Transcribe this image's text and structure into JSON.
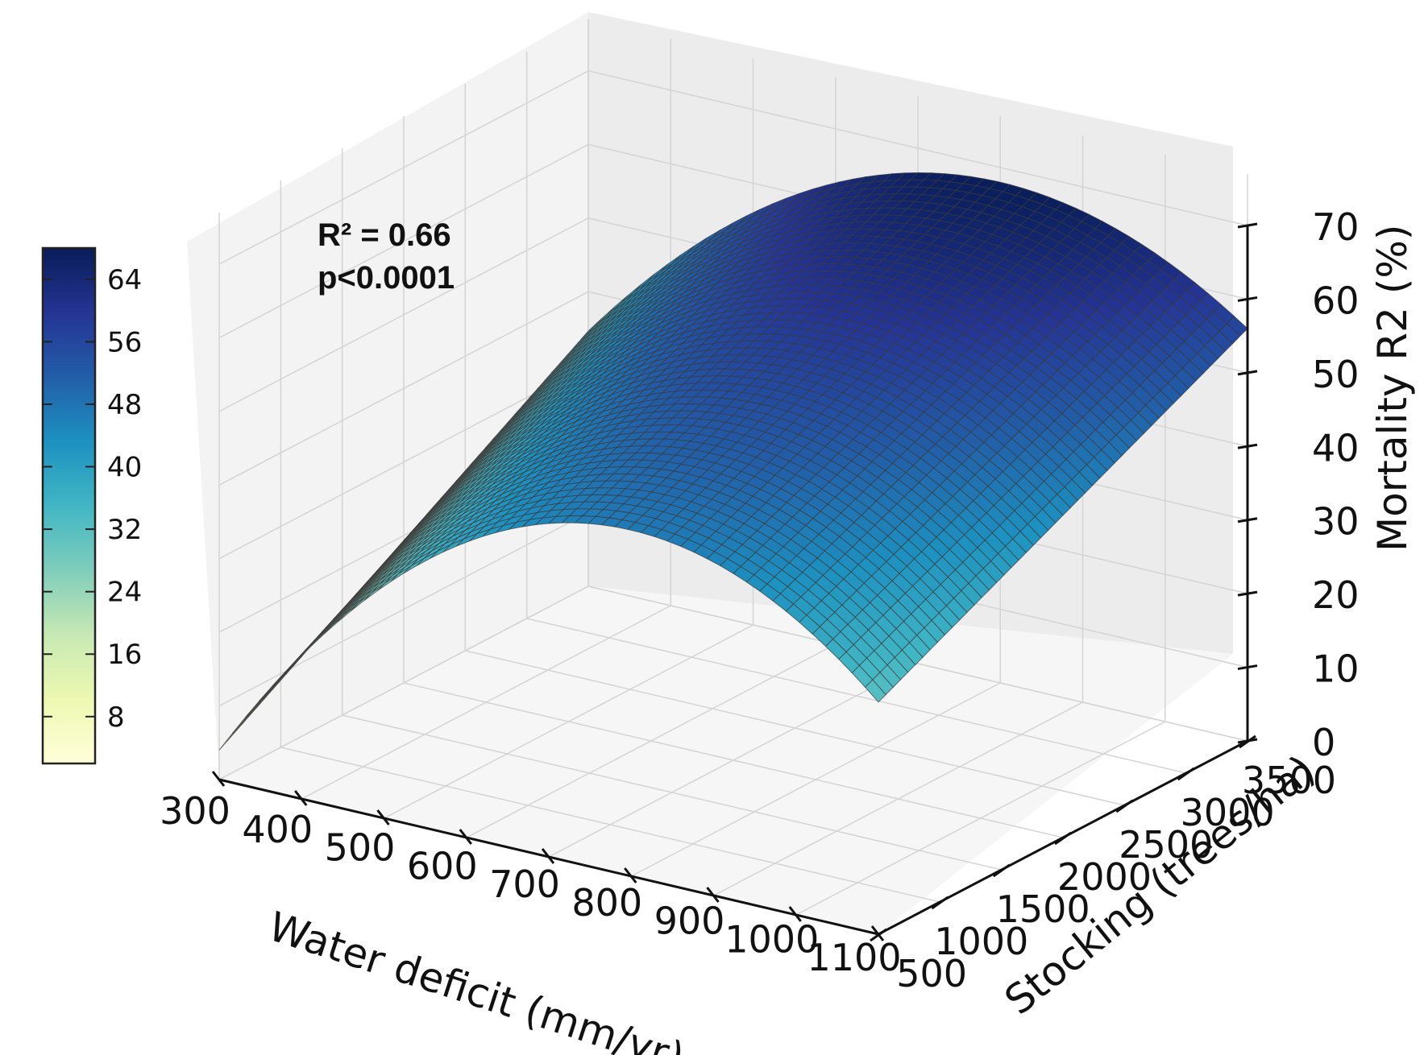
{
  "chart_data": {
    "type": "surface3d",
    "x_axis": {
      "label": "Water deficit (mm/yr)",
      "ticks": [
        "300",
        "400",
        "500",
        "600",
        "700",
        "800",
        "900",
        "1000",
        "1100"
      ],
      "range": [
        300,
        1100
      ]
    },
    "y_axis": {
      "label": "Stocking (trees/ha)",
      "ticks": [
        "500",
        "1000",
        "1500",
        "2000",
        "2500",
        "3000",
        "3500"
      ],
      "range": [
        500,
        3500
      ]
    },
    "z_axis": {
      "label": "Mortality R2 (%)",
      "ticks": [
        "0",
        "10",
        "20",
        "30",
        "40",
        "50",
        "60",
        "70"
      ],
      "range": [
        0,
        70
      ]
    },
    "surface": {
      "model": "quadratic in water deficit plus linear in stocking",
      "x_peak": 800,
      "z_peak_at_max_stocking": 68,
      "z_peak_at_min_stocking": 47,
      "z_at_x300_min_stocking": 4,
      "z_at_x1100_min_stocking": 6,
      "z_at_x1100_max_stocking": 56,
      "approx_corner_values": [
        {
          "x": 300,
          "y": 500,
          "z": 4
        },
        {
          "x": 1100,
          "y": 500,
          "z": 6
        },
        {
          "x": 800,
          "y": 500,
          "z": 47
        },
        {
          "x": 800,
          "y": 3500,
          "z": 68
        },
        {
          "x": 1100,
          "y": 3500,
          "z": 56
        }
      ]
    },
    "colorbar": {
      "colormap": "YlGnBu",
      "ticks": [
        "8",
        "16",
        "24",
        "32",
        "40",
        "48",
        "56",
        "64"
      ],
      "range": [
        2,
        68
      ],
      "colors": [
        "#ffffd9",
        "#edf8b1",
        "#c7e9b4",
        "#7fcdbb",
        "#41b6c4",
        "#1d91c0",
        "#225ea8",
        "#253494",
        "#081d58"
      ]
    },
    "annotation": {
      "line1": "R² = 0.66",
      "line2": "p<0.0001"
    },
    "grid": true
  }
}
